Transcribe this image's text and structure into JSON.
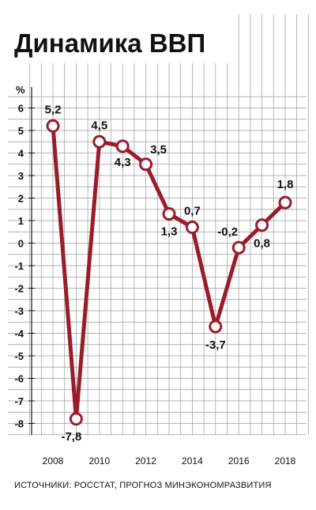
{
  "chart_data": {
    "type": "line",
    "title": "Динамика ВВП",
    "ylabel": "%",
    "xlabel": "",
    "x": [
      2008,
      2009,
      2010,
      2011,
      2012,
      2013,
      2014,
      2015,
      2016,
      2017,
      2018
    ],
    "xtick_labels": [
      "2008",
      "2010",
      "2012",
      "2014",
      "2016",
      "2018"
    ],
    "ytick_labels": [
      "6",
      "5",
      "4",
      "3",
      "2",
      "1",
      "0",
      "-1",
      "-2",
      "-3",
      "-4",
      "-5",
      "-6",
      "-7",
      "-8"
    ],
    "ylim": [
      -8.5,
      6.5
    ],
    "grid": true,
    "series": [
      {
        "values": [
          5.2,
          -7.8,
          4.5,
          4.3,
          3.5,
          1.3,
          0.7,
          -3.7,
          -0.2,
          0.8,
          1.8
        ],
        "labels": [
          "5,2",
          "-7,8",
          "4,5",
          "4,3",
          "3,5",
          "1,3",
          "0,7",
          "-3,7",
          "-0,2",
          "0,8",
          "1,8"
        ]
      }
    ],
    "source": "ИСТОЧНИКИ: РОССТАТ, ПРОГНОЗ МИНЭКОНОМРАЗВИТИЯ",
    "colors": {
      "line": "#9b1b2a",
      "marker_fill": "#ffffff",
      "grid": "#9a9a9a",
      "axis": "#111111"
    }
  }
}
